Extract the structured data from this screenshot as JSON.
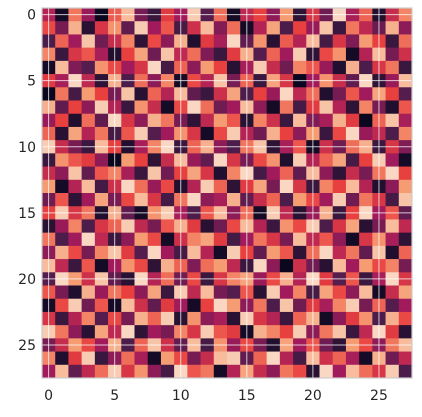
{
  "chart_data": {
    "type": "heatmap",
    "title": "",
    "xlabel": "",
    "ylabel": "",
    "rows": 28,
    "cols": 28,
    "x_ticks": [
      0,
      5,
      10,
      15,
      20,
      25
    ],
    "y_ticks": [
      0,
      5,
      10,
      15,
      20,
      25
    ],
    "x_tick_labels": [
      "0",
      "5",
      "10",
      "15",
      "20",
      "25"
    ],
    "y_tick_labels": [
      "0",
      "5",
      "10",
      "15",
      "20",
      "25"
    ],
    "xlim": [
      -0.5,
      27.5
    ],
    "ylim": [
      27.5,
      -0.5
    ],
    "grid": true,
    "grid_color": "#ffffff",
    "frame_color": "#cccccc",
    "colormap": [
      "#03051a",
      "#4c1d4b",
      "#a11a5b",
      "#e83f3f",
      "#f69c73",
      "#faebdd"
    ],
    "values": [
      [
        0.45,
        0.05,
        0.72,
        0.38,
        0.02,
        0.66,
        0.88,
        0.3,
        0.15,
        0.58,
        0.4,
        0.92,
        0.22,
        0.7,
        0.05,
        0.48,
        0.6,
        0.35,
        0.8,
        0.12,
        0.55,
        0.28,
        0.95,
        0.42,
        0.68,
        0.08,
        0.5,
        0.75
      ],
      [
        0.62,
        0.3,
        0.85,
        0.1,
        0.55,
        0.78,
        0.25,
        0.92,
        0.4,
        0.65,
        0.18,
        0.52,
        0.88,
        0.33,
        0.7,
        0.05,
        0.45,
        0.82,
        0.2,
        0.6,
        0.38,
        0.9,
        0.15,
        0.72,
        0.48,
        0.27,
        0.85,
        0.35
      ],
      [
        0.2,
        0.68,
        0.4,
        0.9,
        0.28,
        0.5,
        0.75,
        0.12,
        0.62,
        0.35,
        0.85,
        0.08,
        0.58,
        0.42,
        0.95,
        0.25,
        0.78,
        0.1,
        0.66,
        0.45,
        0.88,
        0.18,
        0.55,
        0.32,
        0.8,
        0.6,
        0.15,
        0.7
      ],
      [
        0.75,
        0.15,
        0.55,
        0.65,
        0.42,
        0.08,
        0.6,
        0.82,
        0.28,
        0.9,
        0.48,
        0.7,
        0.32,
        0.15,
        0.58,
        0.85,
        0.22,
        0.68,
        0.4,
        0.92,
        0.12,
        0.62,
        0.78,
        0.05,
        0.45,
        0.88,
        0.3,
        0.52
      ],
      [
        0.05,
        0.88,
        0.32,
        0.22,
        0.78,
        0.62,
        0.4,
        0.55,
        0.95,
        0.18,
        0.68,
        0.35,
        0.8,
        0.6,
        0.1,
        0.42,
        0.92,
        0.5,
        0.28,
        0.75,
        0.65,
        0.38,
        0.08,
        0.85,
        0.2,
        0.55,
        0.72,
        0.15
      ],
      [
        0.58,
        0.42,
        0.95,
        0.48,
        0.12,
        0.85,
        0.2,
        0.7,
        0.35,
        0.75,
        0.05,
        0.62,
        0.45,
        0.9,
        0.3,
        0.68,
        0.15,
        0.82,
        0.55,
        0.02,
        0.4,
        0.78,
        0.5,
        0.25,
        0.95,
        0.12,
        0.38,
        0.88
      ],
      [
        0.02,
        0.72,
        0.18,
        0.8,
        0.6,
        0.3,
        0.9,
        0.1,
        0.68,
        0.45,
        0.88,
        0.25,
        0.15,
        0.52,
        0.82,
        0.2,
        0.6,
        0.38,
        0.95,
        0.48,
        0.7,
        0.08,
        0.3,
        0.65,
        0.4,
        0.82,
        0.6,
        0.22
      ],
      [
        0.85,
        0.25,
        0.6,
        0.35,
        0.92,
        0.45,
        0.15,
        0.78,
        0.5,
        0.05,
        0.62,
        0.95,
        0.7,
        0.28,
        0.4,
        0.88,
        0.35,
        0.05,
        0.72,
        0.18,
        0.58,
        0.9,
        0.45,
        0.12,
        0.75,
        0.3,
        0.08,
        0.65
      ],
      [
        0.38,
        0.6,
        0.08,
        0.7,
        0.25,
        0.95,
        0.55,
        0.35,
        0.85,
        0.72,
        0.3,
        0.12,
        0.48,
        0.8,
        0.65,
        0.1,
        0.75,
        0.52,
        0.15,
        0.88,
        0.32,
        0.42,
        0.85,
        0.58,
        0.02,
        0.68,
        0.9,
        0.42
      ],
      [
        0.68,
        0.1,
        0.82,
        0.45,
        0.72,
        0.18,
        0.65,
        0.92,
        0.22,
        0.4,
        0.78,
        0.55,
        0.05,
        0.62,
        0.92,
        0.45,
        0.28,
        0.85,
        0.6,
        0.35,
        0.8,
        0.15,
        0.62,
        0.95,
        0.38,
        0.48,
        0.2,
        0.75
      ],
      [
        0.92,
        0.5,
        0.3,
        0.15,
        0.88,
        0.6,
        0.08,
        0.42,
        0.75,
        0.95,
        0.15,
        0.68,
        0.85,
        0.35,
        0.2,
        0.72,
        0.9,
        0.12,
        0.42,
        0.65,
        0.05,
        0.52,
        0.28,
        0.7,
        0.85,
        0.15,
        0.55,
        0.32
      ],
      [
        0.15,
        0.78,
        0.65,
        0.58,
        0.35,
        0.02,
        0.8,
        0.6,
        0.12,
        0.5,
        0.88,
        0.38,
        0.25,
        0.95,
        0.55,
        0.3,
        0.62,
        0.78,
        0.08,
        0.92,
        0.45,
        0.68,
        0.82,
        0.18,
        0.6,
        0.92,
        0.4,
        0.05
      ],
      [
        0.5,
        0.35,
        0.9,
        0.25,
        0.65,
        0.75,
        0.42,
        0.15,
        0.9,
        0.28,
        0.6,
        0.82,
        0.55,
        0.08,
        0.75,
        0.95,
        0.18,
        0.4,
        0.68,
        0.25,
        0.88,
        0.35,
        0.12,
        0.5,
        0.3,
        0.72,
        0.95,
        0.6
      ],
      [
        0.8,
        0.05,
        0.45,
        0.88,
        0.18,
        0.52,
        0.95,
        0.7,
        0.38,
        0.62,
        0.08,
        0.45,
        0.92,
        0.68,
        0.12,
        0.58,
        0.82,
        0.3,
        0.95,
        0.55,
        0.15,
        0.75,
        0.6,
        0.88,
        0.45,
        0.08,
        0.35,
        0.8
      ],
      [
        0.28,
        0.65,
        0.12,
        0.4,
        0.82,
        0.3,
        0.62,
        0.88,
        0.55,
        0.18,
        0.72,
        0.95,
        0.35,
        0.42,
        0.85,
        0.25,
        0.5,
        0.68,
        0.2,
        0.8,
        0.62,
        0.4,
        0.92,
        0.28,
        0.72,
        0.55,
        0.18,
        0.9
      ],
      [
        0.6,
        0.92,
        0.55,
        0.72,
        0.08,
        0.85,
        0.25,
        0.05,
        0.78,
        0.92,
        0.42,
        0.2,
        0.65,
        0.88,
        0.35,
        0.7,
        0.05,
        0.92,
        0.48,
        0.1,
        0.38,
        0.85,
        0.15,
        0.6,
        0.95,
        0.4,
        0.65,
        0.25
      ],
      [
        0.1,
        0.38,
        0.75,
        0.2,
        0.55,
        0.68,
        0.92,
        0.48,
        0.3,
        0.65,
        0.85,
        0.58,
        0.1,
        0.28,
        0.62,
        0.88,
        0.45,
        0.15,
        0.78,
        0.62,
        0.92,
        0.2,
        0.55,
        0.82,
        0.1,
        0.3,
        0.88,
        0.48
      ],
      [
        0.72,
        0.2,
        0.4,
        0.95,
        0.48,
        0.15,
        0.35,
        0.8,
        0.62,
        0.05,
        0.52,
        0.75,
        0.82,
        0.58,
        0.18,
        0.4,
        0.72,
        0.55,
        0.3,
        0.88,
        0.48,
        0.65,
        0.35,
        0.05,
        0.55,
        0.78,
        0.42,
        0.12
      ],
      [
        0.35,
        0.85,
        0.62,
        0.3,
        0.75,
        0.9,
        0.58,
        0.22,
        0.95,
        0.4,
        0.18,
        0.88,
        0.45,
        0.05,
        0.92,
        0.6,
        0.25,
        0.8,
        0.65,
        0.12,
        0.7,
        0.95,
        0.48,
        0.72,
        0.25,
        0.9,
        0.08,
        0.68
      ],
      [
        0.88,
        0.48,
        0.15,
        0.65,
        0.05,
        0.4,
        0.78,
        0.62,
        0.12,
        0.85,
        0.68,
        0.32,
        0.7,
        0.8,
        0.48,
        0.15,
        0.95,
        0.35,
        0.02,
        0.52,
        0.28,
        0.1,
        0.88,
        0.4,
        0.8,
        0.62,
        0.75,
        0.3
      ],
      [
        0.22,
        0.95,
        0.8,
        0.52,
        0.9,
        0.25,
        0.1,
        0.95,
        0.45,
        0.7,
        0.28,
        0.62,
        0.15,
        0.55,
        0.75,
        0.82,
        0.38,
        0.62,
        0.85,
        0.45,
        0.95,
        0.58,
        0.22,
        0.65,
        0.15,
        0.42,
        0.95,
        0.55
      ],
      [
        0.65,
        0.3,
        0.08,
        0.85,
        0.38,
        0.72,
        0.6,
        0.35,
        0.82,
        0.15,
        0.92,
        0.48,
        0.88,
        0.3,
        0.22,
        0.65,
        0.1,
        0.92,
        0.4,
        0.75,
        0.18,
        0.82,
        0.62,
        0.35,
        0.88,
        0.05,
        0.5,
        0.82
      ],
      [
        0.05,
        0.62,
        0.92,
        0.28,
        0.65,
        0.05,
        0.88,
        0.52,
        0.25,
        0.58,
        0.4,
        0.05,
        0.6,
        0.95,
        0.8,
        0.35,
        0.72,
        0.2,
        0.9,
        0.28,
        0.58,
        0.42,
        0.75,
        0.92,
        0.3,
        0.68,
        0.22,
        0.4
      ],
      [
        0.55,
        0.15,
        0.45,
        0.75,
        0.22,
        0.62,
        0.3,
        0.85,
        0.68,
        0.92,
        0.1,
        0.78,
        0.35,
        0.42,
        0.1,
        0.92,
        0.55,
        0.45,
        0.15,
        0.68,
        0.85,
        0.05,
        0.35,
        0.58,
        0.78,
        0.2,
        0.85,
        0.62
      ],
      [
        0.92,
        0.72,
        0.35,
        0.1,
        0.82,
        0.48,
        0.95,
        0.12,
        0.4,
        0.3,
        0.75,
        0.55,
        0.92,
        0.65,
        0.58,
        0.05,
        0.85,
        0.75,
        0.6,
        0.92,
        0.35,
        0.72,
        0.9,
        0.15,
        0.48,
        0.95,
        0.58,
        0.1
      ],
      [
        0.3,
        0.5,
        0.8,
        0.62,
        0.4,
        0.85,
        0.2,
        0.68,
        0.9,
        0.52,
        0.25,
        0.88,
        0.18,
        0.78,
        0.38,
        0.62,
        0.3,
        0.08,
        0.82,
        0.4,
        0.65,
        0.28,
        0.12,
        0.8,
        0.62,
        0.35,
        0.72,
        0.88
      ],
      [
        0.75,
        0.08,
        0.58,
        0.92,
        0.15,
        0.35,
        0.7,
        0.42,
        0.05,
        0.8,
        0.62,
        0.3,
        0.5,
        0.88,
        0.92,
        0.25,
        0.68,
        0.95,
        0.45,
        0.18,
        0.88,
        0.52,
        0.68,
        0.42,
        0.05,
        0.85,
        0.28,
        0.48
      ],
      [
        0.4,
        0.88,
        0.25,
        0.48,
        0.7,
        0.92,
        0.55,
        0.78,
        0.35,
        0.18,
        0.95,
        0.65,
        0.72,
        0.05,
        0.45,
        0.82,
        0.5,
        0.35,
        0.72,
        0.62,
        0.1,
        0.95,
        0.4,
        0.88,
        0.7,
        0.55,
        0.92,
        0.2
      ]
    ]
  }
}
